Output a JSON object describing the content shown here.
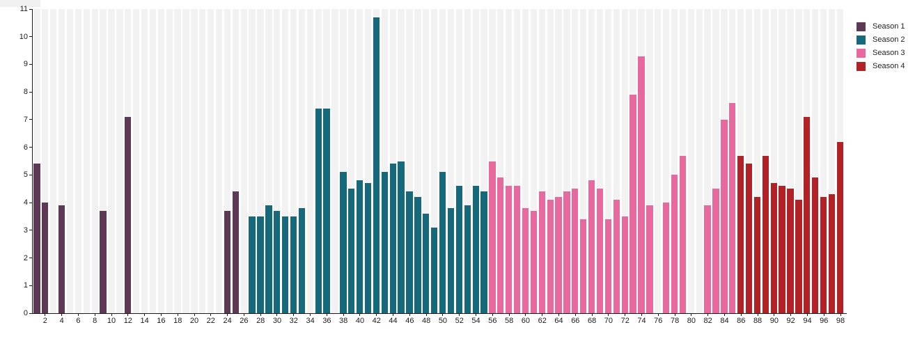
{
  "chart_data": {
    "type": "bar",
    "title": "",
    "xlabel": "",
    "ylabel": "",
    "x_range": [
      1,
      98
    ],
    "ylim": [
      0,
      11
    ],
    "y_ticks": [
      0,
      1,
      2,
      3,
      4,
      5,
      6,
      7,
      8,
      9,
      10,
      11
    ],
    "x_tick_labels": [
      2,
      4,
      6,
      8,
      10,
      12,
      14,
      16,
      18,
      20,
      22,
      24,
      26,
      28,
      30,
      32,
      34,
      36,
      38,
      40,
      42,
      44,
      46,
      48,
      50,
      52,
      54,
      56,
      58,
      60,
      62,
      64,
      66,
      68,
      70,
      72,
      74,
      76,
      78,
      80,
      82,
      84,
      86,
      88,
      90,
      92,
      94,
      96,
      98
    ],
    "grid": false,
    "background_stripes": true,
    "legend_position": "top-right",
    "series": [
      {
        "name": "Season 1",
        "color": "#5e3955",
        "points": [
          [
            1,
            5.4
          ],
          [
            2,
            4.0
          ],
          [
            4,
            3.9
          ],
          [
            9,
            3.7
          ],
          [
            12,
            7.1
          ],
          [
            24,
            3.7
          ],
          [
            25,
            4.4
          ]
        ]
      },
      {
        "name": "Season 2",
        "color": "#15697a",
        "points": [
          [
            27,
            3.5
          ],
          [
            28,
            3.5
          ],
          [
            29,
            3.9
          ],
          [
            30,
            3.7
          ],
          [
            31,
            3.5
          ],
          [
            32,
            3.5
          ],
          [
            33,
            3.8
          ],
          [
            35,
            7.4
          ],
          [
            36,
            7.4
          ],
          [
            38,
            5.1
          ],
          [
            39,
            4.5
          ],
          [
            40,
            4.8
          ],
          [
            41,
            4.7
          ],
          [
            42,
            10.7
          ],
          [
            43,
            5.1
          ],
          [
            44,
            5.4
          ],
          [
            45,
            5.5
          ],
          [
            46,
            4.4
          ],
          [
            47,
            4.2
          ],
          [
            48,
            3.6
          ],
          [
            49,
            3.1
          ],
          [
            50,
            5.1
          ],
          [
            51,
            3.8
          ],
          [
            52,
            4.6
          ],
          [
            53,
            3.9
          ],
          [
            54,
            4.6
          ],
          [
            55,
            4.4
          ]
        ]
      },
      {
        "name": "Season 3",
        "color": "#e7699e",
        "points": [
          [
            56,
            5.5
          ],
          [
            57,
            4.9
          ],
          [
            58,
            4.6
          ],
          [
            59,
            4.6
          ],
          [
            60,
            3.8
          ],
          [
            61,
            3.7
          ],
          [
            62,
            4.4
          ],
          [
            63,
            4.1
          ],
          [
            64,
            4.2
          ],
          [
            65,
            4.4
          ],
          [
            66,
            4.5
          ],
          [
            67,
            3.4
          ],
          [
            68,
            4.8
          ],
          [
            69,
            4.5
          ],
          [
            70,
            3.4
          ],
          [
            71,
            4.1
          ],
          [
            72,
            3.5
          ],
          [
            73,
            7.9
          ],
          [
            74,
            9.3
          ],
          [
            75,
            3.9
          ],
          [
            77,
            4.0
          ],
          [
            78,
            5.0
          ],
          [
            79,
            5.7
          ],
          [
            82,
            3.9
          ],
          [
            83,
            4.5
          ],
          [
            84,
            7.0
          ],
          [
            85,
            7.6
          ]
        ]
      },
      {
        "name": "Season 4",
        "color": "#b22126",
        "points": [
          [
            86,
            5.7
          ],
          [
            87,
            5.4
          ],
          [
            88,
            4.2
          ],
          [
            89,
            5.7
          ],
          [
            90,
            4.7
          ],
          [
            91,
            4.6
          ],
          [
            92,
            4.5
          ],
          [
            93,
            4.1
          ],
          [
            94,
            7.1
          ],
          [
            95,
            4.9
          ],
          [
            96,
            4.2
          ],
          [
            97,
            4.3
          ],
          [
            98,
            6.2
          ]
        ]
      }
    ],
    "colors": {
      "stripe": "#f2f2f2",
      "axis": "#1a1a1a",
      "text": "#1a1a1a",
      "background": "#ffffff"
    }
  }
}
